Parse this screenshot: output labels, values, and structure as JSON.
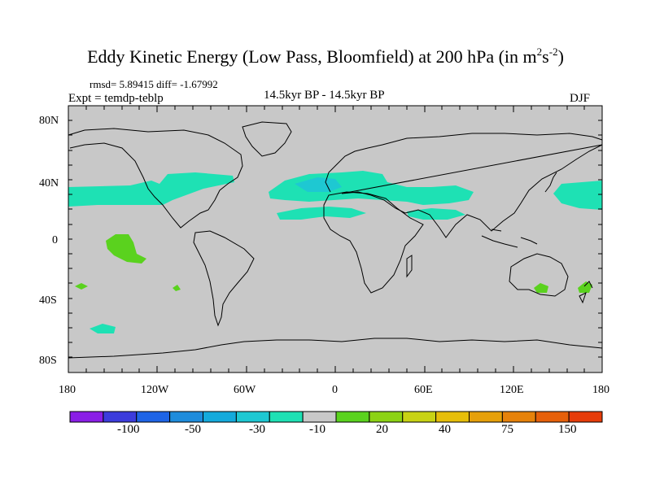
{
  "title": {
    "main": "Eddy Kinetic Energy (Low Pass, Bloomfield) at 200 hPa (in m",
    "sup1": "2",
    "mid": "s",
    "sup2": "-2",
    "close": ")"
  },
  "stats": "rmsd= 5.89415 diff= -1.67992",
  "expt": "Expt = temdp-teblp",
  "period": "14.5kyr BP - 14.5kyr BP",
  "season": "DJF",
  "y_axis_labels": [
    "80N",
    "40N",
    "0",
    "40S",
    "80S"
  ],
  "x_axis_labels": [
    "180",
    "120W",
    "60W",
    "0",
    "60E",
    "120E",
    "180"
  ],
  "colorbar": {
    "colors": [
      "#8a1ee6",
      "#3c3cdc",
      "#1e64e6",
      "#1e8cdc",
      "#14aadc",
      "#1ec8d2",
      "#1ee1b4",
      "#c8c8c8",
      "#5ad21e",
      "#8cd214",
      "#c8d214",
      "#e6be0a",
      "#e6a00a",
      "#e6820a",
      "#e6600a",
      "#e63c0a"
    ],
    "labels": [
      "-100",
      "-50",
      "-30",
      "-10",
      "20",
      "40",
      "75",
      "150"
    ]
  },
  "map_colors": {
    "background": "#c8c8c8",
    "negative": "#1ee1b4",
    "negative_core": "#1ec8d2",
    "positive": "#5ad21e",
    "coast": "#000000"
  }
}
